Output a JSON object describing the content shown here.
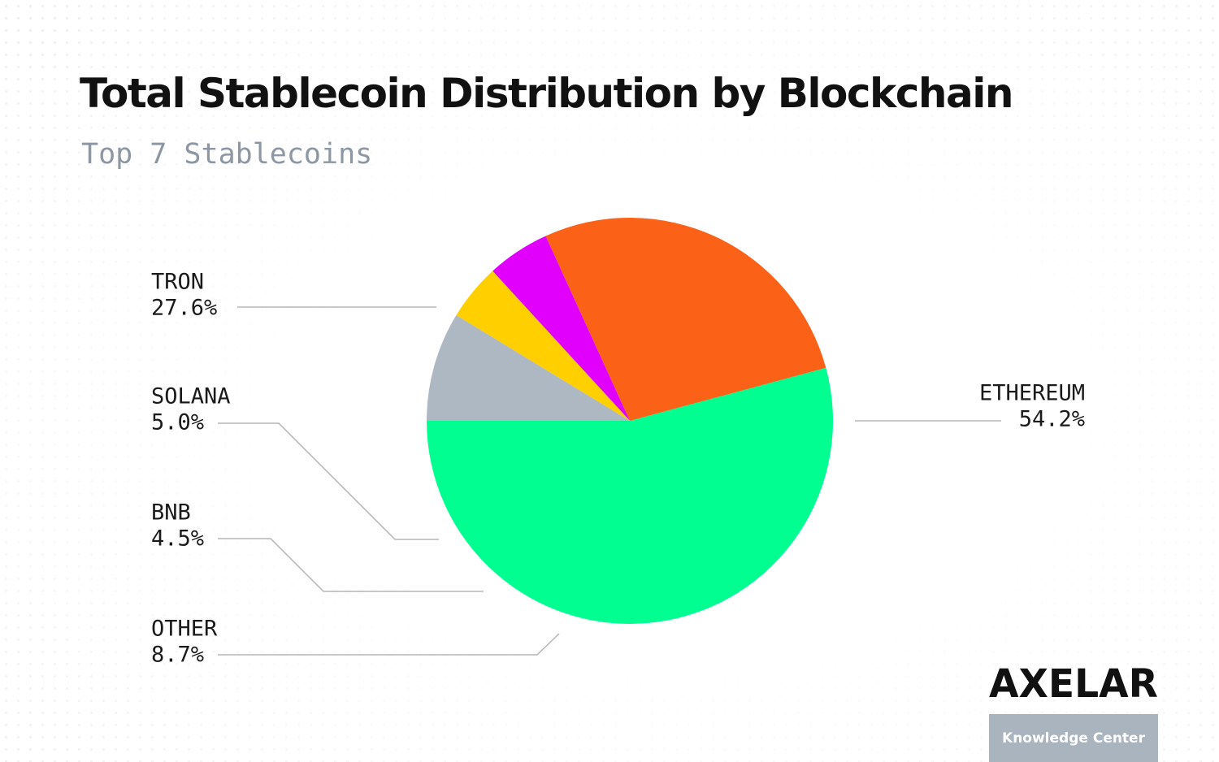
{
  "chart_data": {
    "type": "pie",
    "title": "Total Stablecoin Distribution by Blockchain",
    "subtitle": "Top 7 Stablecoins",
    "start_angle_deg": 180,
    "direction": "counterclockwise",
    "slices": [
      {
        "label": "ETHEREUM",
        "value": 54.2,
        "value_label": "54.2%",
        "color": "#00ff90"
      },
      {
        "label": "TRON",
        "value": 27.6,
        "value_label": "27.6%",
        "color": "#fc6118"
      },
      {
        "label": "SOLANA",
        "value": 5.0,
        "value_label": "5.0%",
        "color": "#e000fb"
      },
      {
        "label": "BNB",
        "value": 4.5,
        "value_label": "4.5%",
        "color": "#ffcf00"
      },
      {
        "label": "OTHER",
        "value": 8.7,
        "value_label": "8.7%",
        "color": "#aeb8c2"
      }
    ],
    "legend": "none"
  },
  "branding": {
    "logo": "AXELAR",
    "badge": "Knowledge Center"
  }
}
